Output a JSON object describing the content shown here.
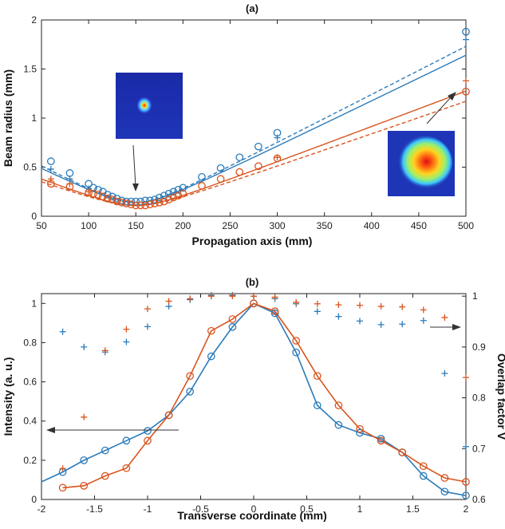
{
  "colors": {
    "blue": "#2b7bba",
    "orange": "#d9541e",
    "axis": "#222222"
  },
  "chart_data": [
    {
      "panel_title": "(a)",
      "type": "line",
      "xlabel": "Propagation axis (mm)",
      "ylabel": "Beam radius (mm)",
      "xlim": [
        50,
        500
      ],
      "ylim": [
        0,
        2
      ],
      "xticks": [
        "50",
        "100",
        "150",
        "200",
        "250",
        "300",
        "350",
        "400",
        "450",
        "500"
      ],
      "yticks": [
        "0",
        "0.5",
        "1",
        "1.5",
        "2"
      ],
      "series": [
        {
          "color": "blue",
          "marker": "circle",
          "x": [
            60,
            80,
            100,
            105,
            110,
            115,
            120,
            125,
            130,
            135,
            140,
            145,
            150,
            155,
            160,
            165,
            170,
            175,
            180,
            185,
            190,
            195,
            200,
            220,
            240,
            260,
            280,
            300,
            500
          ],
          "y": [
            0.56,
            0.44,
            0.33,
            0.29,
            0.27,
            0.25,
            0.22,
            0.2,
            0.18,
            0.16,
            0.15,
            0.15,
            0.15,
            0.15,
            0.16,
            0.16,
            0.17,
            0.19,
            0.21,
            0.23,
            0.25,
            0.27,
            0.29,
            0.4,
            0.49,
            0.6,
            0.71,
            0.85,
            1.88
          ]
        },
        {
          "color": "orange",
          "marker": "circle",
          "x": [
            60,
            80,
            100,
            105,
            110,
            115,
            120,
            125,
            130,
            135,
            140,
            145,
            150,
            155,
            160,
            165,
            170,
            175,
            180,
            185,
            190,
            195,
            200,
            220,
            240,
            260,
            280,
            300,
            500
          ],
          "y": [
            0.33,
            0.3,
            0.24,
            0.23,
            0.22,
            0.2,
            0.18,
            0.17,
            0.15,
            0.14,
            0.13,
            0.12,
            0.11,
            0.11,
            0.11,
            0.12,
            0.13,
            0.14,
            0.15,
            0.17,
            0.19,
            0.21,
            0.23,
            0.31,
            0.38,
            0.45,
            0.51,
            0.59,
            1.27
          ]
        },
        {
          "color": "blue",
          "marker": "plus",
          "x": [
            60,
            80,
            100,
            300,
            500
          ],
          "y": [
            0.48,
            0.38,
            0.28,
            0.8,
            1.8
          ]
        },
        {
          "color": "orange",
          "marker": "plus",
          "x": [
            60,
            80,
            100,
            300,
            500
          ],
          "y": [
            0.38,
            0.33,
            0.25,
            0.6,
            1.38
          ]
        }
      ],
      "fits": [
        {
          "color": "blue",
          "style": "solid",
          "w0": 0.14,
          "z0": 150,
          "slope": 0.00467
        },
        {
          "color": "blue",
          "style": "dashed",
          "w0": 0.14,
          "z0": 150,
          "slope": 0.00493
        },
        {
          "color": "orange",
          "style": "solid",
          "w0": 0.11,
          "z0": 150,
          "slope": 0.00363
        },
        {
          "color": "orange",
          "style": "dashed",
          "w0": 0.11,
          "z0": 150,
          "slope": 0.00333
        }
      ]
    },
    {
      "panel_title": "(b)",
      "type": "line",
      "xlabel": "Transverse coordinate (mm)",
      "ylabel": "Intensity (a. u.)",
      "ylabel_right": "Overlap factor V",
      "xlim": [
        -2,
        2
      ],
      "ylim": [
        0,
        1.05
      ],
      "ylim_right": [
        0.6,
        1.005
      ],
      "xticks": [
        "-2",
        "-1.5",
        "-1",
        "-0.5",
        "0",
        "0.5",
        "1",
        "1.5",
        "2"
      ],
      "yticks": [
        "0",
        "0.2",
        "0.4",
        "0.6",
        "0.8",
        "1"
      ],
      "yticks_right": [
        "0.6",
        "0.7",
        "0.8",
        "0.9",
        "1"
      ],
      "x": [
        -1.8,
        -1.6,
        -1.4,
        -1.2,
        -1.0,
        -0.8,
        -0.6,
        -0.4,
        -0.2,
        0.0,
        0.2,
        0.4,
        0.6,
        0.8,
        1.0,
        1.2,
        1.4,
        1.6,
        1.8,
        2.0
      ],
      "series": [
        {
          "color": "blue",
          "marker": "circle",
          "axis": "left",
          "y": [
            0.14,
            0.2,
            0.25,
            0.3,
            0.35,
            0.43,
            0.55,
            0.73,
            0.88,
            1.0,
            0.95,
            0.75,
            0.48,
            0.38,
            0.34,
            0.31,
            0.24,
            0.12,
            0.04,
            0.02
          ],
          "line_start": [
            -2.0,
            0.09
          ]
        },
        {
          "color": "orange",
          "marker": "circle",
          "axis": "left",
          "y": [
            0.06,
            0.07,
            0.12,
            0.16,
            0.3,
            0.43,
            0.63,
            0.86,
            0.92,
            1.0,
            0.96,
            0.81,
            0.63,
            0.48,
            0.36,
            0.3,
            0.24,
            0.17,
            0.11,
            0.09
          ]
        },
        {
          "color": "blue",
          "marker": "plus",
          "axis": "right",
          "y": [
            0.93,
            0.9,
            0.89,
            0.91,
            0.94,
            0.98,
            0.993,
            1.002,
            1.002,
            1.0,
            0.995,
            0.985,
            0.97,
            0.96,
            0.951,
            0.944,
            0.945,
            0.952,
            0.848,
            0.704
          ]
        },
        {
          "color": "orange",
          "marker": "plus",
          "axis": "right",
          "y": [
            0.661,
            0.762,
            0.893,
            0.935,
            0.975,
            0.99,
            0.995,
            1.0,
            1.0,
            1.0,
            0.998,
            0.988,
            0.985,
            0.983,
            0.982,
            0.98,
            0.979,
            0.973,
            0.958,
            0.84
          ]
        }
      ]
    }
  ]
}
